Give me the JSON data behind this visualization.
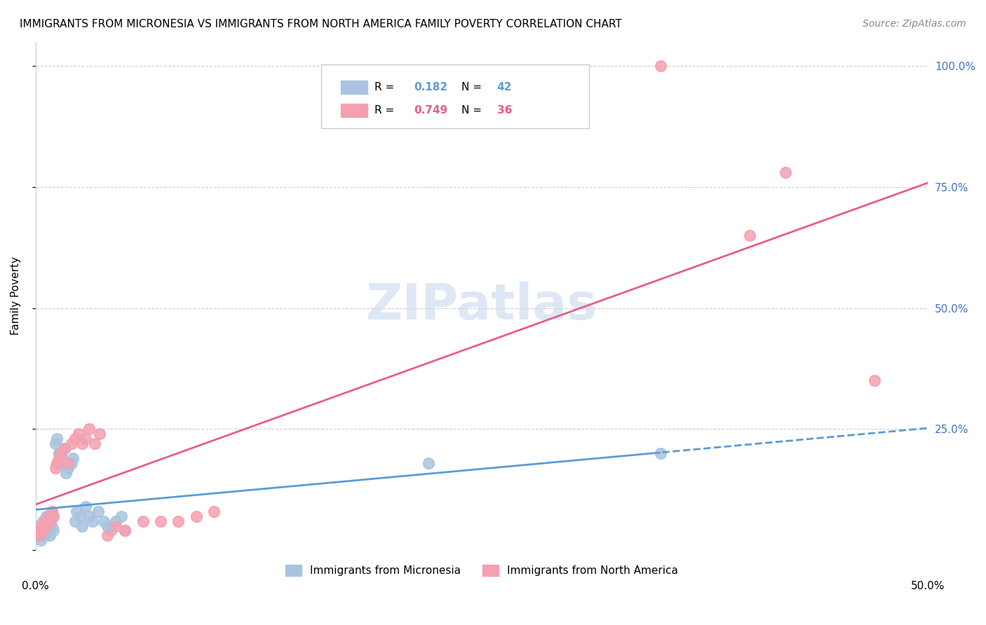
{
  "title": "IMMIGRANTS FROM MICRONESIA VS IMMIGRANTS FROM NORTH AMERICA FAMILY POVERTY CORRELATION CHART",
  "source": "Source: ZipAtlas.com",
  "ylabel": "Family Poverty",
  "y_ticks": [
    0.0,
    0.25,
    0.5,
    0.75,
    1.0
  ],
  "y_tick_labels": [
    "",
    "25.0%",
    "50.0%",
    "75.0%",
    "100.0%"
  ],
  "xlim": [
    0.0,
    0.5
  ],
  "ylim": [
    0.0,
    1.05
  ],
  "micronesia_color": "#a8c4e0",
  "north_america_color": "#f4a0b0",
  "micronesia_line_color": "#5b9bd5",
  "north_america_line_color": "#e85d8a",
  "watermark": "ZIPatlas",
  "micronesia_x": [
    0.001,
    0.002,
    0.003,
    0.003,
    0.004,
    0.005,
    0.005,
    0.006,
    0.006,
    0.007,
    0.008,
    0.008,
    0.009,
    0.009,
    0.01,
    0.01,
    0.011,
    0.012,
    0.013,
    0.014,
    0.015,
    0.016,
    0.017,
    0.018,
    0.02,
    0.021,
    0.022,
    0.023,
    0.025,
    0.026,
    0.028,
    0.03,
    0.032,
    0.035,
    0.038,
    0.04,
    0.042,
    0.045,
    0.048,
    0.05,
    0.22,
    0.35
  ],
  "micronesia_y": [
    0.05,
    0.03,
    0.04,
    0.02,
    0.06,
    0.04,
    0.03,
    0.05,
    0.07,
    0.04,
    0.03,
    0.06,
    0.08,
    0.05,
    0.07,
    0.04,
    0.22,
    0.23,
    0.2,
    0.18,
    0.19,
    0.21,
    0.16,
    0.17,
    0.18,
    0.19,
    0.06,
    0.08,
    0.07,
    0.05,
    0.09,
    0.07,
    0.06,
    0.08,
    0.06,
    0.05,
    0.04,
    0.06,
    0.07,
    0.04,
    0.18,
    0.2
  ],
  "north_america_x": [
    0.001,
    0.002,
    0.003,
    0.004,
    0.005,
    0.006,
    0.007,
    0.008,
    0.009,
    0.01,
    0.011,
    0.012,
    0.013,
    0.014,
    0.016,
    0.018,
    0.02,
    0.022,
    0.024,
    0.026,
    0.028,
    0.03,
    0.033,
    0.036,
    0.04,
    0.045,
    0.05,
    0.06,
    0.07,
    0.08,
    0.09,
    0.1,
    0.35,
    0.4,
    0.42,
    0.47
  ],
  "north_america_y": [
    0.04,
    0.03,
    0.05,
    0.04,
    0.06,
    0.05,
    0.07,
    0.06,
    0.08,
    0.07,
    0.17,
    0.18,
    0.19,
    0.2,
    0.21,
    0.18,
    0.22,
    0.23,
    0.24,
    0.22,
    0.23,
    0.25,
    0.22,
    0.24,
    0.03,
    0.05,
    0.04,
    0.06,
    0.06,
    0.06,
    0.07,
    0.08,
    1.0,
    0.65,
    0.78,
    0.35
  ]
}
